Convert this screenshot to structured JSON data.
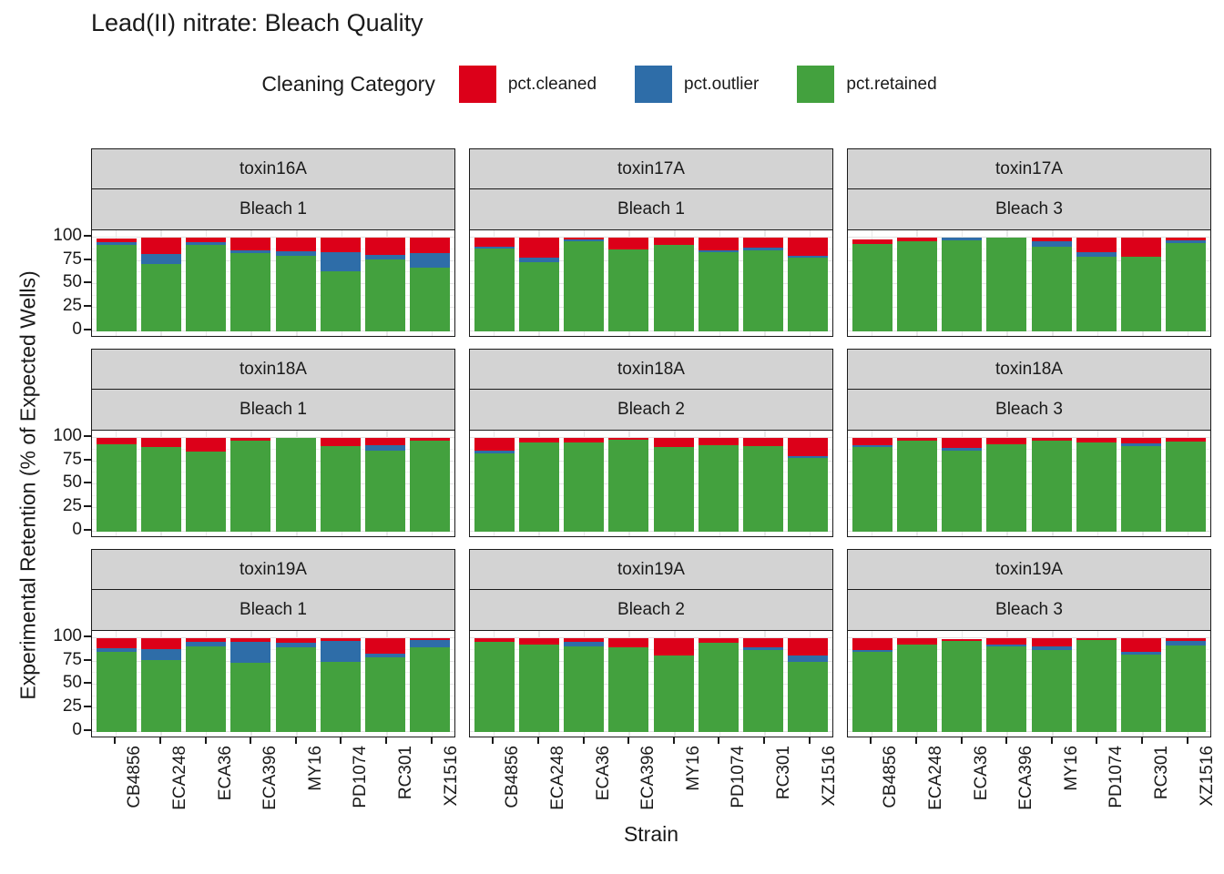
{
  "title": "Lead(II) nitrate: Bleach Quality",
  "legend": {
    "title": "Cleaning Category",
    "items": [
      {
        "label": "pct.cleaned",
        "color": "#dc0019"
      },
      {
        "label": "pct.outlier",
        "color": "#2e6da8"
      },
      {
        "label": "pct.retained",
        "color": "#43a13e"
      }
    ]
  },
  "chart_data": {
    "type": "bar",
    "stacked": true,
    "faceted": true,
    "title": "Lead(II) nitrate: Bleach Quality",
    "xlabel": "Strain",
    "ylabel": "Experimental Retention (% of Expected Wells)",
    "ylim": [
      0,
      100
    ],
    "y_ticks": [
      0,
      25,
      50,
      75,
      100
    ],
    "grid": true,
    "legend_position": "top",
    "legend_title": "Cleaning Category",
    "categories": [
      "CB4856",
      "ECA248",
      "ECA36",
      "ECA396",
      "MY16",
      "PD1074",
      "RC301",
      "XZ1516"
    ],
    "series_order_bottom_to_top": [
      "pct.retained",
      "pct.outlier",
      "pct.cleaned"
    ],
    "colors": {
      "pct.cleaned": "#dc0019",
      "pct.outlier": "#2e6da8",
      "pct.retained": "#43a13e"
    },
    "strip_background": "#d3d3d3",
    "facets": [
      {
        "row": 1,
        "col": 1,
        "toxin": "toxin16A",
        "bleach": "Bleach 1",
        "values": {
          "pct.retained": [
            92,
            72,
            92,
            83,
            80,
            64,
            77,
            68
          ],
          "pct.outlier": [
            3,
            10,
            3,
            3,
            5,
            20,
            4,
            15
          ],
          "pct.cleaned": [
            4,
            18,
            5,
            14,
            15,
            16,
            19,
            17
          ]
        }
      },
      {
        "row": 1,
        "col": 2,
        "toxin": "toxin17A",
        "bleach": "Bleach 1",
        "values": {
          "pct.retained": [
            88,
            74,
            96,
            87,
            92,
            84,
            86,
            78
          ],
          "pct.outlier": [
            2,
            4,
            2,
            0,
            0,
            2,
            3,
            2
          ],
          "pct.cleaned": [
            10,
            22,
            2,
            13,
            8,
            14,
            11,
            20
          ]
        }
      },
      {
        "row": 1,
        "col": 3,
        "toxin": "toxin17A",
        "bleach": "Bleach 3",
        "values": {
          "pct.retained": [
            93,
            96,
            97,
            100,
            90,
            79,
            79,
            94
          ],
          "pct.outlier": [
            0,
            0,
            3,
            0,
            6,
            5,
            0,
            3
          ],
          "pct.cleaned": [
            5,
            4,
            0,
            0,
            4,
            16,
            21,
            3
          ]
        }
      },
      {
        "row": 2,
        "col": 1,
        "toxin": "toxin18A",
        "bleach": "Bleach 1",
        "values": {
          "pct.retained": [
            93,
            90,
            85,
            97,
            100,
            91,
            86,
            97
          ],
          "pct.outlier": [
            0,
            0,
            0,
            0,
            0,
            0,
            6,
            0
          ],
          "pct.cleaned": [
            7,
            10,
            15,
            3,
            0,
            9,
            8,
            3
          ]
        }
      },
      {
        "row": 2,
        "col": 2,
        "toxin": "toxin18A",
        "bleach": "Bleach 2",
        "values": {
          "pct.retained": [
            83,
            95,
            95,
            98,
            90,
            92,
            91,
            78
          ],
          "pct.outlier": [
            3,
            0,
            0,
            0,
            0,
            0,
            0,
            2
          ],
          "pct.cleaned": [
            14,
            5,
            5,
            2,
            10,
            8,
            9,
            20
          ]
        }
      },
      {
        "row": 2,
        "col": 3,
        "toxin": "toxin18A",
        "bleach": "Bleach 3",
        "values": {
          "pct.retained": [
            90,
            97,
            86,
            93,
            97,
            95,
            91,
            96
          ],
          "pct.outlier": [
            2,
            0,
            3,
            0,
            0,
            0,
            3,
            0
          ],
          "pct.cleaned": [
            8,
            3,
            11,
            7,
            3,
            5,
            6,
            4
          ]
        }
      },
      {
        "row": 3,
        "col": 1,
        "toxin": "toxin19A",
        "bleach": "Bleach 1",
        "values": {
          "pct.retained": [
            85,
            77,
            91,
            74,
            90,
            75,
            79,
            90
          ],
          "pct.outlier": [
            4,
            11,
            5,
            22,
            5,
            22,
            4,
            8
          ],
          "pct.cleaned": [
            11,
            12,
            4,
            4,
            5,
            3,
            17,
            2
          ]
        }
      },
      {
        "row": 3,
        "col": 2,
        "toxin": "toxin19A",
        "bleach": "Bleach 2",
        "values": {
          "pct.retained": [
            96,
            93,
            91,
            90,
            81,
            95,
            87,
            75
          ],
          "pct.outlier": [
            0,
            0,
            5,
            0,
            0,
            0,
            3,
            6
          ],
          "pct.cleaned": [
            4,
            7,
            4,
            10,
            19,
            5,
            10,
            19
          ]
        }
      },
      {
        "row": 3,
        "col": 3,
        "toxin": "toxin19A",
        "bleach": "Bleach 3",
        "values": {
          "pct.retained": [
            85,
            93,
            97,
            91,
            87,
            98,
            82,
            92
          ],
          "pct.outlier": [
            2,
            0,
            0,
            2,
            4,
            0,
            3,
            5
          ],
          "pct.cleaned": [
            13,
            7,
            2,
            7,
            9,
            2,
            15,
            3
          ]
        }
      }
    ]
  }
}
